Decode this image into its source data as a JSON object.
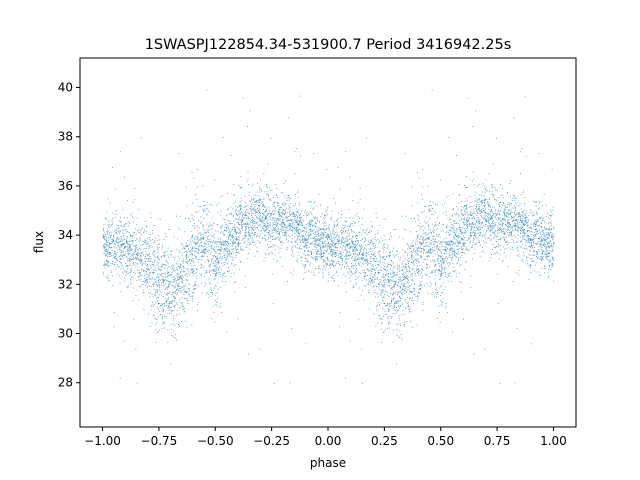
{
  "chart_data": {
    "type": "scatter",
    "title": "1SWASPJ122854.34-531900.7 Period 3416942.25s",
    "xlabel": "phase",
    "ylabel": "flux",
    "xlim": [
      -1.1,
      1.1
    ],
    "ylim": [
      26.2,
      41.2
    ],
    "xticks": [
      -1.0,
      -0.75,
      -0.5,
      -0.25,
      0.0,
      0.25,
      0.5,
      0.75,
      1.0
    ],
    "xtick_labels": [
      "−1.00",
      "−0.75",
      "−0.50",
      "−0.25",
      "0.00",
      "0.25",
      "0.50",
      "0.75",
      "1.00"
    ],
    "yticks": [
      28,
      30,
      32,
      34,
      36,
      38,
      40
    ],
    "ytick_labels": [
      "28",
      "30",
      "32",
      "34",
      "36",
      "38",
      "40"
    ],
    "grid": false,
    "marker_color": "#1f77b4",
    "baseline_profile": {
      "phase": [
        0.0,
        0.05,
        0.1,
        0.15,
        0.2,
        0.25,
        0.3,
        0.35,
        0.4,
        0.45,
        0.5,
        0.55,
        0.6,
        0.65,
        0.7,
        0.75,
        0.8,
        0.85,
        0.9,
        0.95,
        1.0
      ],
      "flux_mean": [
        33.6,
        33.5,
        33.4,
        33.2,
        32.9,
        32.0,
        31.7,
        32.2,
        33.3,
        33.6,
        33.0,
        33.6,
        34.2,
        34.6,
        34.8,
        34.5,
        34.6,
        34.4,
        34.0,
        33.7,
        33.6
      ],
      "flux_spread": [
        0.8,
        0.8,
        0.9,
        1.0,
        1.1,
        1.3,
        1.2,
        1.1,
        1.2,
        1.3,
        1.2,
        1.0,
        0.9,
        0.8,
        0.8,
        0.8,
        0.8,
        0.8,
        0.8,
        0.8,
        0.8
      ]
    }
  }
}
